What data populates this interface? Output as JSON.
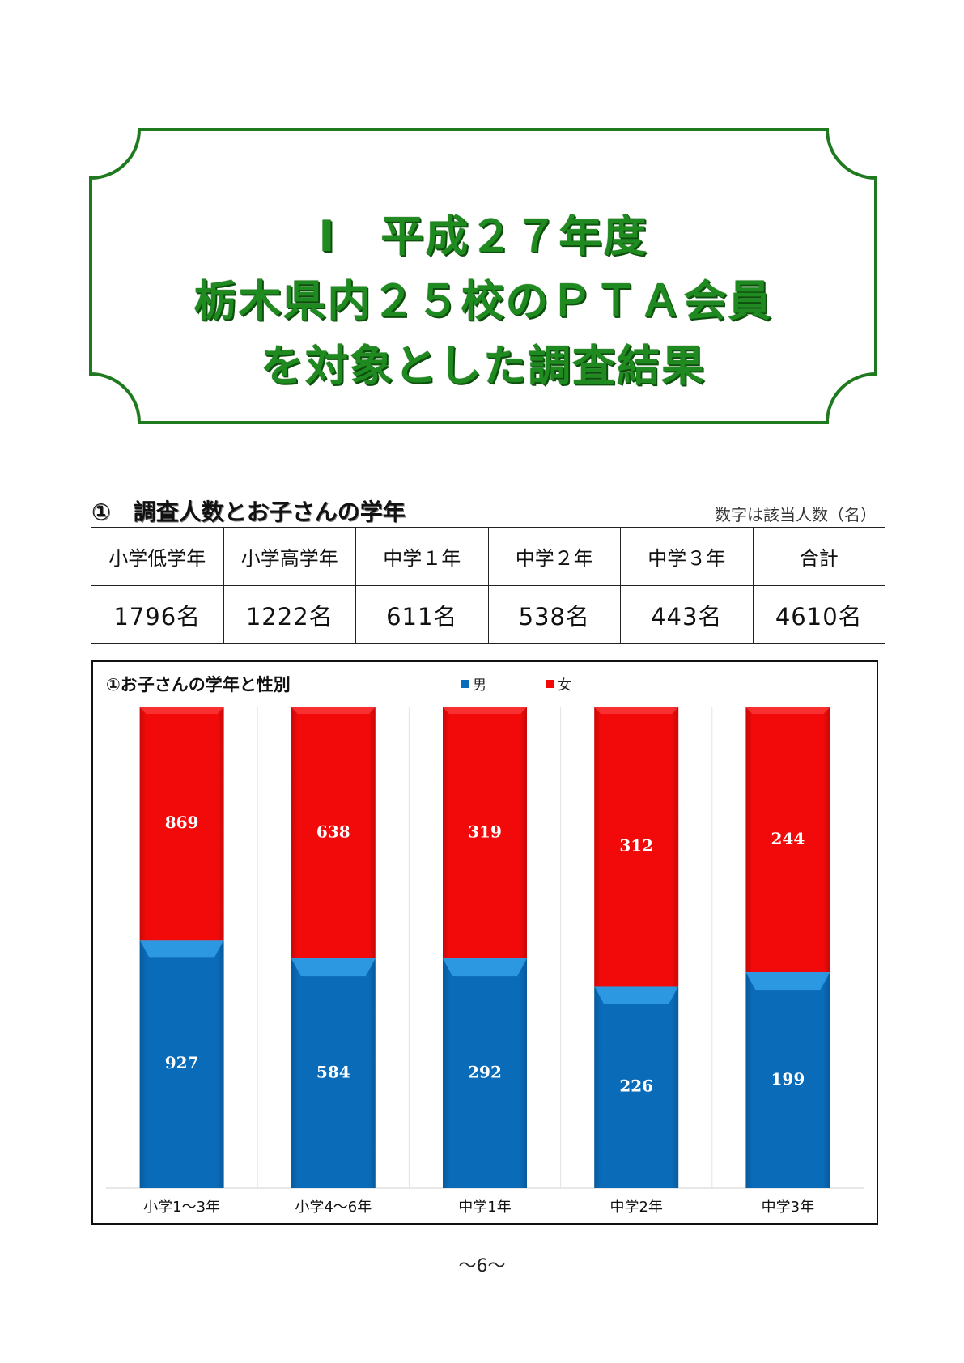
{
  "title": {
    "line1": "Ⅰ　平成２７年度",
    "line2": "栃木県内２５校のＰＴＡ会員",
    "line3": "を対象とした調査結果"
  },
  "section": {
    "heading": "①　調査人数とお子さんの学年",
    "note": "数字は該当人数（名）"
  },
  "table": {
    "headers": [
      "小学低学年",
      "小学高学年",
      "中学１年",
      "中学２年",
      "中学３年",
      "合計"
    ],
    "values": [
      "1796名",
      "1222名",
      "611名",
      "538名",
      "443名",
      "4610名"
    ]
  },
  "chart_data": {
    "type": "bar",
    "stacked": "100%",
    "title": "①お子さんの学年と性別",
    "categories": [
      "小学1～3年",
      "小学4～6年",
      "中学1年",
      "中学2年",
      "中学3年"
    ],
    "series": [
      {
        "name": "男",
        "values": [
          927,
          584,
          292,
          226,
          199
        ],
        "color": "#0a6bb8"
      },
      {
        "name": "女",
        "values": [
          869,
          638,
          319,
          312,
          244
        ],
        "color": "#f20a0a"
      }
    ],
    "legend": "top-center",
    "grid": false
  },
  "footer": {
    "page_number": "～6～"
  }
}
